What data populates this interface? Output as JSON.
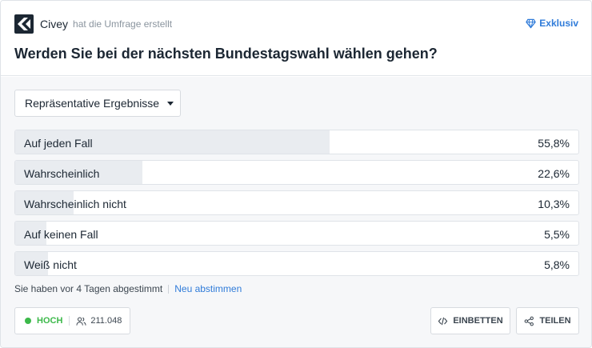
{
  "header": {
    "brand": "Civey",
    "brand_subtitle": "hat die Umfrage erstellt",
    "exclusive_label": "Exklusiv",
    "question": "Werden Sie bei der nächsten Bundestagswahl wählen gehen?"
  },
  "filter": {
    "selected": "Repräsentative Ergebnisse"
  },
  "results": [
    {
      "label": "Auf jeden Fall",
      "percent_text": "55,8%",
      "value": 55.8
    },
    {
      "label": "Wahrscheinlich",
      "percent_text": "22,6%",
      "value": 22.6
    },
    {
      "label": "Wahrscheinlich nicht",
      "percent_text": "10,3%",
      "value": 10.3
    },
    {
      "label": "Auf keinen Fall",
      "percent_text": "5,5%",
      "value": 5.5
    },
    {
      "label": "Weiß nicht",
      "percent_text": "5,8%",
      "value": 5.8
    }
  ],
  "vote_status": {
    "text": "Sie haben vor 4 Tagen abgestimmt",
    "revote_link": "Neu abstimmen"
  },
  "footer": {
    "quality_label": "HOCH",
    "participants": "211.048",
    "embed_label": "EINBETTEN",
    "share_label": "TEILEN"
  },
  "colors": {
    "accent": "#2f7bd9",
    "quality": "#3cb94a",
    "bar_fill": "#e9ecf0"
  },
  "icons": {
    "brand": "civey-logo",
    "exclusive": "diamond-icon",
    "participants": "users-icon",
    "embed": "code-icon",
    "share": "share-icon"
  }
}
